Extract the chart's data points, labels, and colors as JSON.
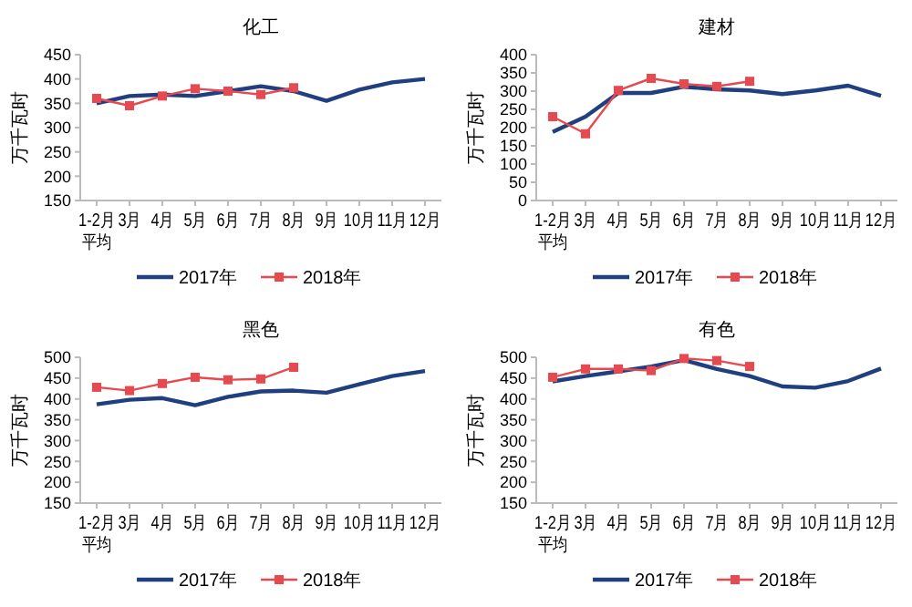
{
  "chart_data": [
    {
      "type": "line",
      "title": "化工",
      "ylabel": "万千瓦时",
      "categories": [
        "1-2月平均",
        "3月",
        "4月",
        "5月",
        "6月",
        "7月",
        "8月",
        "9月",
        "10月",
        "11月",
        "12月"
      ],
      "ylim": [
        150,
        450
      ],
      "yticks": [
        150,
        200,
        250,
        300,
        350,
        400,
        450
      ],
      "grid": false,
      "legend": "bottom",
      "series": [
        {
          "name": "2017年",
          "color": "#203f80",
          "marker": "none",
          "values": [
            350,
            365,
            368,
            365,
            375,
            385,
            375,
            355,
            378,
            393,
            400
          ]
        },
        {
          "name": "2018年",
          "color": "#e8494e",
          "marker": "square",
          "values": [
            360,
            345,
            365,
            380,
            375,
            368,
            382,
            null,
            null,
            null,
            null
          ]
        }
      ]
    },
    {
      "type": "line",
      "title": "建材",
      "ylabel": "万千瓦时",
      "categories": [
        "1-2月平均",
        "3月",
        "4月",
        "5月",
        "6月",
        "7月",
        "8月",
        "9月",
        "10月",
        "11月",
        "12月"
      ],
      "ylim": [
        0,
        400
      ],
      "yticks": [
        0,
        50,
        100,
        150,
        200,
        250,
        300,
        350,
        400
      ],
      "grid": false,
      "legend": "bottom",
      "series": [
        {
          "name": "2017年",
          "color": "#203f80",
          "marker": "none",
          "values": [
            188,
            230,
            295,
            295,
            312,
            305,
            302,
            292,
            302,
            315,
            287
          ]
        },
        {
          "name": "2018年",
          "color": "#e8494e",
          "marker": "square",
          "values": [
            230,
            183,
            302,
            335,
            320,
            313,
            327,
            null,
            null,
            null,
            null
          ]
        }
      ]
    },
    {
      "type": "line",
      "title": "黑色",
      "ylabel": "万千瓦时",
      "categories": [
        "1-2月平均",
        "3月",
        "4月",
        "5月",
        "6月",
        "7月",
        "8月",
        "9月",
        "10月",
        "11月",
        "12月"
      ],
      "ylim": [
        150,
        500
      ],
      "yticks": [
        150,
        200,
        250,
        300,
        350,
        400,
        450,
        500
      ],
      "grid": false,
      "legend": "bottom",
      "series": [
        {
          "name": "2017年",
          "color": "#203f80",
          "marker": "none",
          "values": [
            387,
            398,
            402,
            385,
            405,
            418,
            420,
            415,
            435,
            455,
            467
          ]
        },
        {
          "name": "2018年",
          "color": "#e8494e",
          "marker": "square",
          "values": [
            428,
            420,
            437,
            452,
            446,
            448,
            476,
            null,
            null,
            null,
            null
          ]
        }
      ]
    },
    {
      "type": "line",
      "title": "有色",
      "ylabel": "万千瓦时",
      "categories": [
        "1-2月平均",
        "3月",
        "4月",
        "5月",
        "6月",
        "7月",
        "8月",
        "9月",
        "10月",
        "11月",
        "12月"
      ],
      "ylim": [
        150,
        500
      ],
      "yticks": [
        150,
        200,
        250,
        300,
        350,
        400,
        450,
        500
      ],
      "grid": false,
      "legend": "bottom",
      "series": [
        {
          "name": "2017年",
          "color": "#203f80",
          "marker": "none",
          "values": [
            442,
            455,
            466,
            478,
            493,
            472,
            455,
            430,
            427,
            443,
            473
          ]
        },
        {
          "name": "2018年",
          "color": "#e8494e",
          "marker": "square",
          "values": [
            452,
            472,
            472,
            468,
            497,
            492,
            478,
            null,
            null,
            null,
            null
          ]
        }
      ]
    }
  ]
}
